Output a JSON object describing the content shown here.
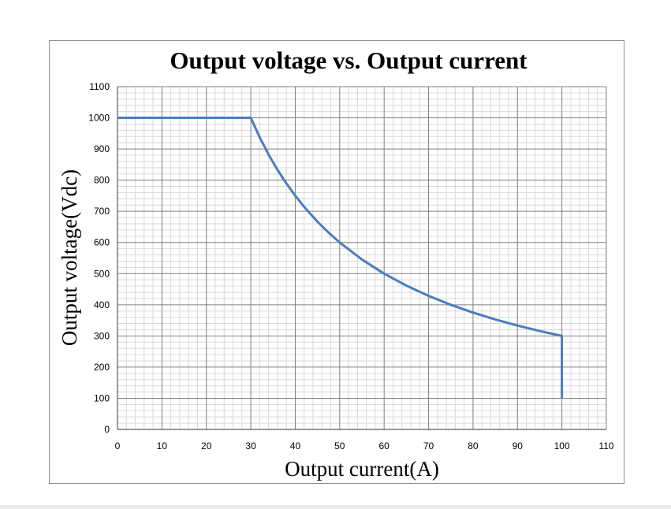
{
  "chart_data": {
    "type": "line",
    "title": "Output voltage vs. Output current",
    "xlabel": "Output current(A)",
    "ylabel": "Output voltage(Vdc)",
    "xlim": [
      0,
      110
    ],
    "ylim": [
      0,
      1100
    ],
    "x_ticks": [
      0,
      10,
      20,
      30,
      40,
      50,
      60,
      70,
      80,
      90,
      100,
      110
    ],
    "y_ticks": [
      0,
      100,
      200,
      300,
      400,
      500,
      600,
      700,
      800,
      900,
      1000,
      1100
    ],
    "x_minor_step": 2,
    "y_minor_step": 20,
    "grid": true,
    "line_color": "#4a7ebb",
    "series": [
      {
        "x": [
          0,
          30,
          32,
          34,
          36,
          38,
          40,
          42,
          45,
          48,
          50,
          55,
          60,
          65,
          70,
          75,
          80,
          85,
          90,
          95,
          100,
          100
        ],
        "y": [
          1000,
          1000,
          937.5,
          882.4,
          833.3,
          789.5,
          750,
          714.3,
          666.7,
          625,
          600,
          545.5,
          500,
          461.5,
          428.6,
          400,
          375,
          352.9,
          333.3,
          315.8,
          300,
          100
        ]
      }
    ]
  }
}
